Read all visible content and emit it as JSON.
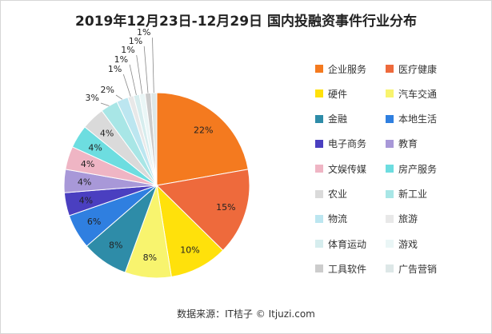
{
  "chart_data": {
    "type": "pie",
    "title": "2019年12月23日-12月29日 国内投融资事件行业分布",
    "categories": [
      "企业服务",
      "医疗健康",
      "硬件",
      "汽车交通",
      "金融",
      "本地生活",
      "电子商务",
      "教育",
      "文娱传媒",
      "房产服务",
      "农业",
      "新工业",
      "物流",
      "旅游",
      "体育运动",
      "游戏",
      "工具软件",
      "广告营销"
    ],
    "values": [
      22,
      15,
      10,
      8,
      8,
      6,
      4,
      4,
      4,
      4,
      4,
      3,
      2,
      1,
      1,
      1,
      1,
      1
    ],
    "labels": [
      "22%",
      "15%",
      "10%",
      "8%",
      "8%",
      "6%",
      "4%",
      "4%",
      "4%",
      "4%",
      "4%",
      "3%",
      "2%",
      "1%",
      "1%",
      "1%",
      "1%",
      "1%"
    ],
    "colors": [
      "#F47A1F",
      "#EE6A3C",
      "#FFE10B",
      "#F8F46E",
      "#2E8CA8",
      "#2F7FE0",
      "#4A3FC0",
      "#A898D8",
      "#EFB5C4",
      "#6DDDE0",
      "#DADADA",
      "#A8E6E6",
      "#BCE6F0",
      "#E8E8E8",
      "#D6EDEE",
      "#EAF6F6",
      "#CCCCCC",
      "#DDE7E7"
    ],
    "legend_position": "right"
  },
  "footer": {
    "source": "数据来源：IT桔子 © Itjuzi.com"
  }
}
